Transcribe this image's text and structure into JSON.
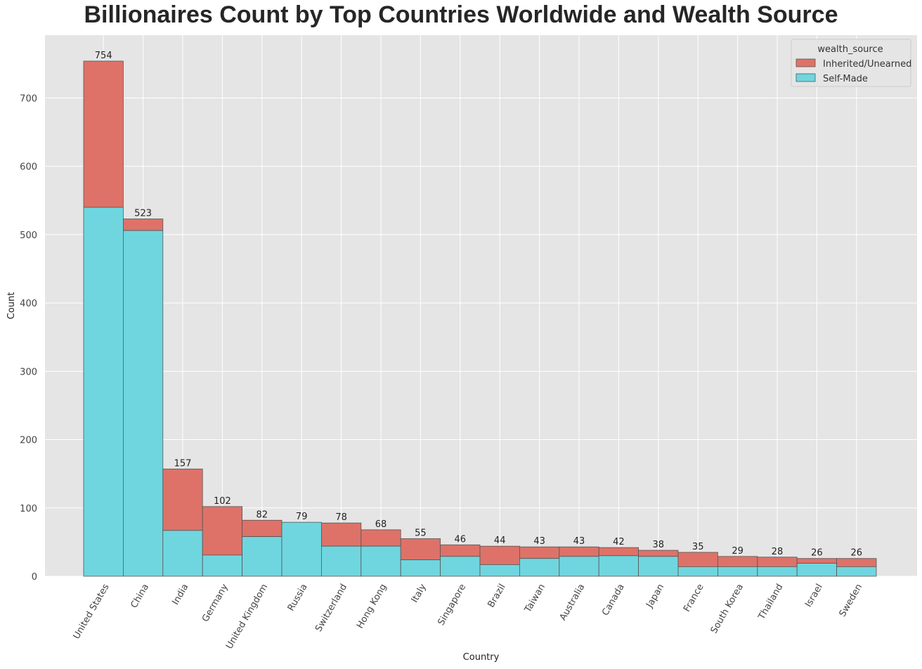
{
  "chart_data": {
    "type": "bar",
    "stacked": true,
    "title": "Billionaires Count by Top Countries Worldwide and Wealth Source",
    "xlabel": "Country",
    "ylabel": "Count",
    "ylim": [
      0,
      792
    ],
    "yticks": [
      0,
      100,
      200,
      300,
      400,
      500,
      600,
      700
    ],
    "grid": true,
    "legend": {
      "title": "wealth_source",
      "position": "top-right"
    },
    "categories": [
      "United States",
      "China",
      "India",
      "Germany",
      "United Kingdom",
      "Russia",
      "Switzerland",
      "Hong Kong",
      "Italy",
      "Singapore",
      "Brazil",
      "Taiwan",
      "Australia",
      "Canada",
      "Japan",
      "France",
      "South Korea",
      "Thailand",
      "Israel",
      "Sweden"
    ],
    "totals": [
      754,
      523,
      157,
      102,
      82,
      79,
      78,
      68,
      55,
      46,
      44,
      43,
      43,
      42,
      38,
      35,
      29,
      28,
      26,
      26
    ],
    "series": [
      {
        "name": "Self-Made",
        "color": "#6fd6df",
        "values": [
          540,
          506,
          67,
          31,
          58,
          79,
          44,
          44,
          24,
          29,
          17,
          26,
          29,
          30,
          29,
          14,
          14,
          14,
          19,
          14
        ]
      },
      {
        "name": "Inherited/Unearned",
        "color": "#de7268",
        "values": [
          214,
          17,
          90,
          71,
          24,
          0,
          34,
          24,
          31,
          17,
          27,
          17,
          14,
          12,
          9,
          21,
          15,
          14,
          7,
          12
        ]
      }
    ]
  }
}
